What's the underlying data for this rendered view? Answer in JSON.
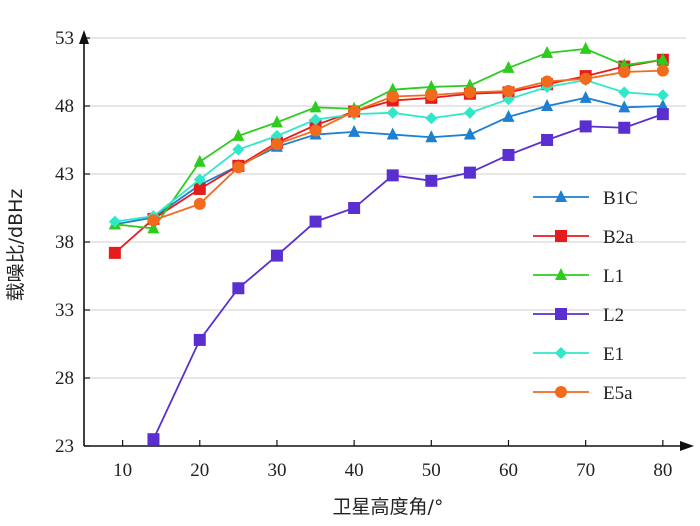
{
  "chart_data": {
    "type": "line",
    "xlabel": "卫星高度角/°",
    "ylabel": "载噪比/dBHz",
    "xlim": [
      5,
      83
    ],
    "ylim": [
      23,
      53
    ],
    "xticks": [
      10,
      20,
      30,
      40,
      50,
      60,
      70,
      80
    ],
    "yticks": [
      23,
      28,
      33,
      38,
      43,
      48,
      53
    ],
    "grid": "horizontal",
    "legend_position": "right",
    "series": [
      {
        "name": "B1C",
        "color": "#1f7fd0",
        "marker": "triangle",
        "x": [
          9,
          14,
          20,
          25,
          30,
          35,
          40,
          45,
          50,
          55,
          60,
          65,
          70,
          75,
          80
        ],
        "y": [
          39.3,
          39.8,
          42.2,
          43.6,
          45.0,
          45.9,
          46.1,
          45.9,
          45.7,
          45.9,
          47.2,
          48.0,
          48.6,
          47.9,
          48.0
        ]
      },
      {
        "name": "B2a",
        "color": "#e61c1c",
        "marker": "square",
        "x": [
          9,
          14,
          20,
          25,
          30,
          35,
          40,
          45,
          50,
          55,
          60,
          65,
          70,
          75,
          80
        ],
        "y": [
          37.2,
          39.7,
          41.9,
          43.6,
          45.3,
          46.6,
          47.6,
          48.4,
          48.6,
          48.9,
          49.0,
          49.6,
          50.2,
          50.9,
          51.4
        ]
      },
      {
        "name": "L1",
        "color": "#2ecc1f",
        "marker": "triangle",
        "x": [
          9,
          14,
          20,
          25,
          30,
          35,
          40,
          45,
          50,
          55,
          60,
          65,
          70,
          75,
          80
        ],
        "y": [
          39.3,
          39.0,
          43.9,
          45.8,
          46.8,
          47.9,
          47.8,
          49.2,
          49.4,
          49.5,
          50.8,
          51.9,
          52.2,
          51.0,
          51.4
        ]
      },
      {
        "name": "L2",
        "color": "#5a2fd0",
        "marker": "square",
        "x": [
          14,
          20,
          25,
          30,
          35,
          40,
          45,
          50,
          55,
          60,
          65,
          70,
          75,
          80
        ],
        "y": [
          23.5,
          30.8,
          34.6,
          37.0,
          39.5,
          40.5,
          42.9,
          42.5,
          43.1,
          44.4,
          45.5,
          46.5,
          46.4,
          47.4
        ]
      },
      {
        "name": "E1",
        "color": "#2ee8c8",
        "marker": "diamond",
        "x": [
          9,
          14,
          20,
          25,
          30,
          35,
          40,
          45,
          50,
          55,
          60,
          65,
          70,
          75,
          80
        ],
        "y": [
          39.5,
          39.9,
          42.6,
          44.8,
          45.8,
          47.0,
          47.4,
          47.5,
          47.1,
          47.5,
          48.5,
          49.4,
          49.9,
          49.0,
          48.8
        ]
      },
      {
        "name": "E5a",
        "color": "#f26a1b",
        "marker": "circle",
        "x": [
          14,
          20,
          25,
          30,
          35,
          40,
          45,
          50,
          55,
          60,
          65,
          70,
          75,
          80
        ],
        "y": [
          39.6,
          40.8,
          43.5,
          45.2,
          46.2,
          47.6,
          48.7,
          48.8,
          49.0,
          49.1,
          49.8,
          50.0,
          50.5,
          50.6
        ]
      }
    ]
  }
}
